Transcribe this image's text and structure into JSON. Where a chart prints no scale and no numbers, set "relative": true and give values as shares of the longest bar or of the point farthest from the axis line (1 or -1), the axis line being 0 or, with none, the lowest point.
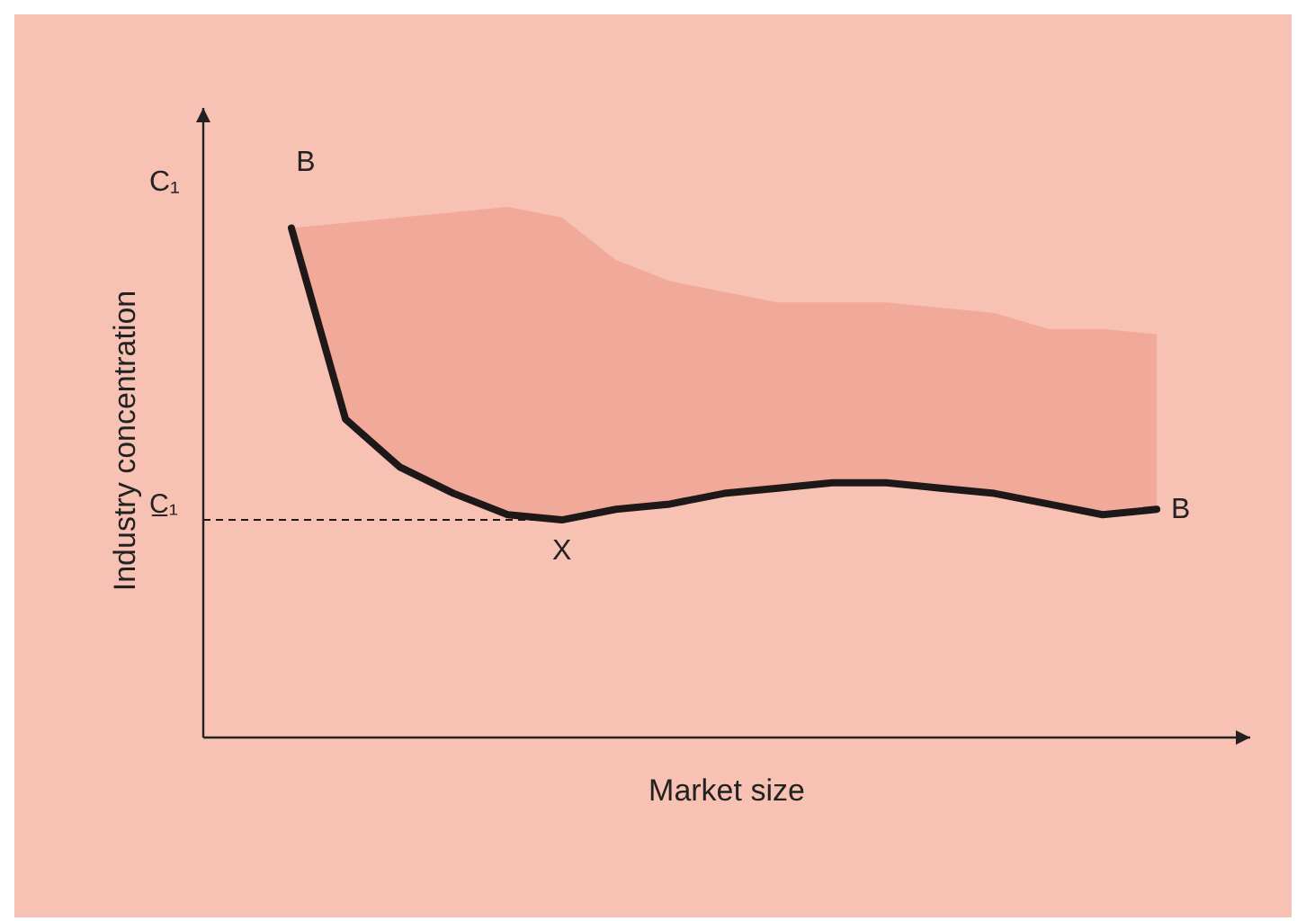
{
  "chart_data": {
    "type": "line",
    "relative": true,
    "xlabel": "Market size",
    "ylabel": "Industry concentration",
    "categories": [
      null,
      null,
      null,
      null,
      null,
      null,
      null,
      null,
      null,
      null,
      null,
      null,
      null,
      null,
      null,
      null,
      null
    ],
    "series": [
      {
        "type": "area",
        "color": "#f1aa9a",
        "values": [
          0.96,
          0.97,
          0.98,
          0.99,
          1.0,
          0.98,
          0.9,
          0.86,
          0.84,
          0.82,
          0.82,
          0.82,
          0.81,
          0.8,
          0.77,
          0.77,
          0.76
        ]
      },
      {
        "type": "line",
        "color": "#1e1818",
        "values": [
          0.96,
          0.6,
          0.51,
          0.46,
          0.42,
          0.41,
          0.43,
          0.44,
          0.46,
          0.47,
          0.48,
          0.48,
          0.47,
          0.46,
          0.44,
          0.42,
          0.43
        ]
      }
    ],
    "ref_lines": [
      {
        "axis": "y",
        "value": 0.41,
        "label": "C̲₁",
        "line_style": "dashed",
        "color": "#1e1818"
      }
    ],
    "annotations": [
      "C₁",
      "B",
      "X",
      "B"
    ]
  }
}
